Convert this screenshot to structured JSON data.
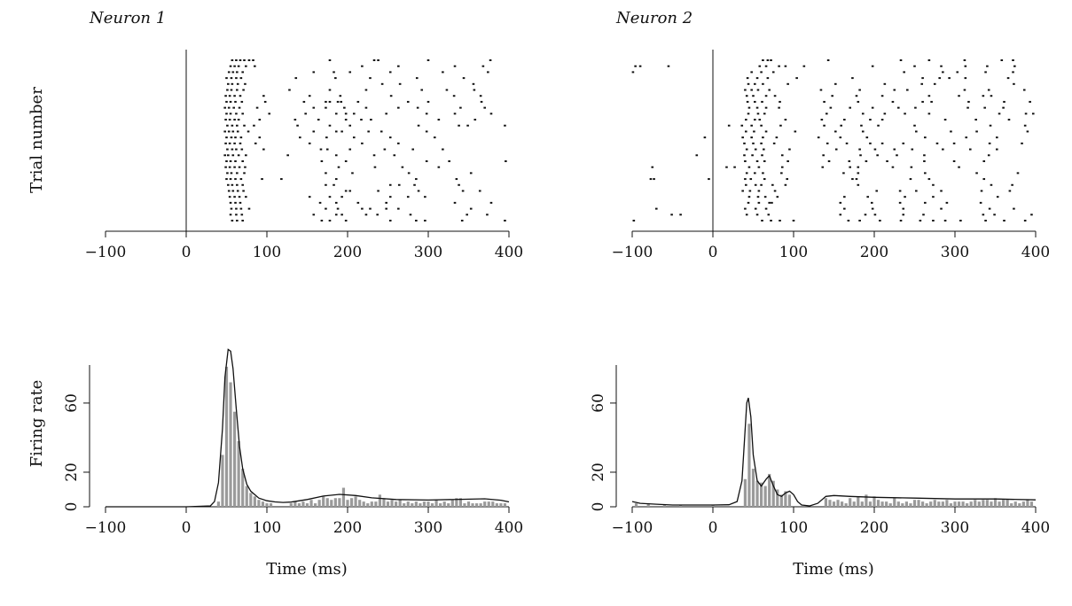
{
  "chart_data": [
    {
      "type": "raster",
      "panel": "neuron1-raster",
      "title": "Neuron 1",
      "xlabel": "",
      "ylabel": "Trial number",
      "xlim": [
        -100,
        400
      ],
      "xticks": [
        "−100",
        "0",
        "100",
        "200",
        "300",
        "400"
      ],
      "xtick_values": [
        -100,
        0,
        100,
        200,
        300,
        400
      ],
      "trials": 28,
      "spike_times": [
        [
          57,
          62,
          67,
          72,
          78,
          83,
          178,
          233,
          238,
          300,
          377
        ],
        [
          55,
          60,
          65,
          74,
          85,
          218,
          263,
          333,
          368
        ],
        [
          53,
          58,
          63,
          70,
          158,
          183,
          203,
          253,
          318,
          374
        ],
        [
          50,
          56,
          62,
          68,
          136,
          185,
          228,
          286,
          344
        ],
        [
          52,
          57,
          64,
          73,
          243,
          265,
          356
        ],
        [
          51,
          56,
          63,
          71,
          128,
          178,
          223,
          292,
          323,
          357
        ],
        [
          49,
          54,
          60,
          67,
          96,
          153,
          191,
          254,
          332,
          365
        ],
        [
          50,
          55,
          61,
          69,
          98,
          146,
          173,
          178,
          188,
          192,
          213,
          275,
          300,
          366
        ],
        [
          48,
          53,
          59,
          66,
          88,
          158,
          173,
          196,
          223,
          263,
          287,
          340,
          370
        ],
        [
          50,
          55,
          62,
          70,
          103,
          148,
          186,
          198,
          208,
          248,
          298,
          333,
          378
        ],
        [
          49,
          54,
          60,
          65,
          91,
          135,
          164,
          198,
          217,
          229,
          313,
          358
        ],
        [
          51,
          57,
          63,
          72,
          84,
          138,
          178,
          203,
          288,
          338,
          349,
          395
        ],
        [
          48,
          53,
          58,
          64,
          77,
          158,
          186,
          193,
          226,
          242,
          298
        ],
        [
          50,
          56,
          61,
          68,
          91,
          141,
          174,
          208,
          253,
          308
        ],
        [
          49,
          54,
          60,
          67,
          86,
          153,
          218,
          263
        ],
        [
          51,
          57,
          62,
          69,
          96,
          167,
          175,
          203,
          246,
          281,
          318
        ],
        [
          48,
          52,
          58,
          65,
          74,
          126,
          186,
          233,
          258
        ],
        [
          50,
          55,
          61,
          70,
          168,
          198,
          298,
          326,
          396
        ],
        [
          49,
          54,
          60,
          66,
          73,
          189,
          234,
          268,
          313
        ],
        [
          51,
          56,
          63,
          72,
          173,
          206,
          276,
          353
        ],
        [
          50,
          55,
          61,
          68,
          94,
          118,
          186,
          285,
          335
        ],
        [
          52,
          57,
          63,
          70,
          173,
          183,
          253,
          264,
          283,
          338
        ],
        [
          53,
          58,
          64,
          71,
          198,
          203,
          238,
          288,
          343,
          364
        ],
        [
          54,
          60,
          66,
          74,
          153,
          178,
          193,
          253,
          275,
          296
        ],
        [
          55,
          61,
          67,
          166,
          186,
          213,
          248,
          333,
          378
        ],
        [
          56,
          62,
          68,
          78,
          173,
          188,
          218,
          228,
          248,
          263,
          353
        ],
        [
          55,
          62,
          69,
          158,
          186,
          193,
          223,
          237,
          278,
          348,
          373
        ],
        [
          57,
          63,
          70,
          168,
          178,
          198,
          253,
          285,
          296,
          342,
          395
        ]
      ]
    },
    {
      "type": "raster",
      "panel": "neuron2-raster",
      "title": "Neuron 2",
      "xlabel": "",
      "ylabel": "",
      "xlim": [
        -100,
        400
      ],
      "xticks": [
        "−100",
        "0",
        "100",
        "200",
        "300",
        "400"
      ],
      "xtick_values": [
        -100,
        0,
        100,
        200,
        300,
        400
      ],
      "trials": 28,
      "spike_times": [
        [
          62,
          68,
          72,
          143,
          233,
          268,
          312,
          358,
          372
        ],
        [
          -96,
          -90,
          -55,
          58,
          66,
          82,
          90,
          113,
          198,
          250,
          283,
          313,
          340,
          374
        ],
        [
          -99,
          48,
          60,
          75,
          237,
          285,
          303,
          338,
          372
        ],
        [
          43,
          55,
          68,
          104,
          173,
          260,
          281,
          293,
          313,
          366
        ],
        [
          44,
          52,
          62,
          93,
          152,
          213,
          259,
          275,
          373
        ],
        [
          40,
          48,
          56,
          70,
          134,
          182,
          225,
          241,
          312,
          342,
          386
        ],
        [
          42,
          50,
          66,
          77,
          148,
          178,
          210,
          268,
          305,
          335,
          345
        ],
        [
          43,
          52,
          61,
          83,
          138,
          180,
          223,
          260,
          271,
          317,
          361,
          393
        ],
        [
          45,
          55,
          66,
          82,
          146,
          170,
          198,
          230,
          251,
          316,
          337,
          360
        ],
        [
          44,
          56,
          64,
          141,
          186,
          213,
          238,
          268,
          355,
          388,
          397
        ],
        [
          41,
          52,
          58,
          90,
          135,
          163,
          195,
          210,
          288,
          326,
          367
        ],
        [
          20,
          36,
          48,
          60,
          84,
          138,
          159,
          184,
          205,
          250,
          344,
          387
        ],
        [
          41,
          51,
          66,
          102,
          152,
          186,
          252,
          295,
          327,
          390
        ],
        [
          -10,
          37,
          48,
          62,
          79,
          131,
          158,
          191,
          263,
          314,
          352
        ],
        [
          39,
          50,
          60,
          76,
          142,
          166,
          195,
          210,
          236,
          278,
          299,
          343,
          383
        ],
        [
          42,
          53,
          63,
          95,
          153,
          182,
          201,
          225,
          247,
          285,
          319,
          352
        ],
        [
          -20,
          39,
          49,
          61,
          86,
          137,
          183,
          204,
          228,
          262,
          342
        ],
        [
          40,
          55,
          64,
          93,
          144,
          169,
          190,
          216,
          262,
          299,
          336
        ],
        [
          -75,
          17,
          27,
          45,
          57,
          86,
          136,
          170,
          180,
          223,
          246,
          305
        ],
        [
          42,
          52,
          62,
          85,
          162,
          180,
          263,
          327,
          378
        ],
        [
          -77,
          -73,
          -5,
          40,
          47,
          64,
          92,
          173,
          178,
          245,
          268,
          336
        ],
        [
          41,
          53,
          60,
          74,
          90,
          180,
          273,
          345,
          371
        ],
        [
          37,
          46,
          57,
          77,
          203,
          232,
          252,
          283,
          333,
          368
        ],
        [
          45,
          56,
          65,
          80,
          163,
          192,
          238,
          273,
          353
        ],
        [
          44,
          57,
          70,
          73,
          158,
          197,
          232,
          263,
          290,
          332
        ],
        [
          -70,
          40,
          53,
          66,
          163,
          198,
          236,
          283,
          343,
          373
        ],
        [
          -51,
          -40,
          42,
          55,
          69,
          158,
          189,
          201,
          236,
          261,
          335,
          349,
          395
        ],
        [
          -98,
          61,
          72,
          83,
          100,
          168,
          182,
          207,
          233,
          257,
          273,
          288,
          307,
          338,
          361,
          387
        ]
      ]
    },
    {
      "type": "bar",
      "panel": "neuron1-rate",
      "title": "",
      "xlabel": "Time (ms)",
      "ylabel": "Firing rate",
      "xlim": [
        -100,
        400
      ],
      "ylim": [
        0,
        82
      ],
      "xticks": [
        "−100",
        "0",
        "100",
        "200",
        "300",
        "400"
      ],
      "xtick_values": [
        -100,
        0,
        100,
        200,
        300,
        400
      ],
      "yticks": [
        "0",
        "20",
        "60"
      ],
      "ytick_values": [
        0,
        20,
        60
      ],
      "bins_x": [
        40,
        45,
        50,
        55,
        60,
        65,
        70,
        75,
        80,
        85,
        90,
        95,
        100,
        105,
        130,
        135,
        140,
        145,
        150,
        155,
        160,
        165,
        170,
        175,
        180,
        185,
        190,
        195,
        200,
        205,
        210,
        215,
        220,
        225,
        230,
        235,
        240,
        245,
        250,
        255,
        260,
        265,
        270,
        275,
        280,
        285,
        290,
        295,
        300,
        305,
        310,
        315,
        320,
        325,
        330,
        335,
        340,
        345,
        350,
        355,
        360,
        365,
        370,
        375,
        380,
        385,
        390,
        395
      ],
      "bins_y": [
        3,
        30,
        81,
        72,
        55,
        38,
        22,
        12,
        8,
        6,
        4,
        3,
        2,
        2,
        2,
        3,
        2,
        3,
        2,
        4,
        2,
        4,
        6,
        5,
        4,
        5,
        5,
        11,
        4,
        5,
        6,
        4,
        3,
        2,
        3,
        3,
        7,
        5,
        3,
        4,
        3,
        4,
        2,
        3,
        2,
        3,
        2,
        3,
        3,
        2,
        4,
        2,
        3,
        2,
        4,
        5,
        5,
        2,
        3,
        2,
        2,
        2,
        3,
        3,
        3,
        2,
        2,
        2
      ],
      "series": [
        {
          "type": "line",
          "x": [
            -100,
            0,
            30,
            35,
            40,
            45,
            48,
            52,
            55,
            58,
            62,
            66,
            70,
            75,
            80,
            90,
            100,
            110,
            120,
            130,
            150,
            170,
            190,
            210,
            230,
            260,
            300,
            340,
            370,
            390,
            400
          ],
          "y": [
            0,
            0,
            0.5,
            3,
            14,
            45,
            75,
            91,
            90,
            80,
            57,
            35,
            22,
            13,
            9,
            5,
            3.5,
            2.8,
            2.5,
            2.7,
            4.2,
            6.2,
            7.2,
            6.5,
            5.2,
            4.2,
            3.9,
            4.3,
            4.6,
            3.8,
            2.8
          ]
        }
      ]
    },
    {
      "type": "bar",
      "panel": "neuron2-rate",
      "title": "",
      "xlabel": "Time (ms)",
      "ylabel": "",
      "xlim": [
        -100,
        400
      ],
      "ylim": [
        0,
        82
      ],
      "xticks": [
        "−100",
        "0",
        "100",
        "200",
        "300",
        "400"
      ],
      "xtick_values": [
        -100,
        0,
        100,
        200,
        300,
        400
      ],
      "yticks": [
        "0",
        "20",
        "60"
      ],
      "ytick_values": [
        0,
        20,
        60
      ],
      "bins_x": [
        -95,
        -80,
        -60,
        -40,
        0,
        40,
        45,
        50,
        55,
        60,
        65,
        70,
        75,
        80,
        85,
        90,
        95,
        140,
        145,
        150,
        155,
        160,
        165,
        170,
        175,
        180,
        185,
        190,
        195,
        200,
        205,
        210,
        215,
        220,
        225,
        230,
        235,
        240,
        245,
        250,
        255,
        260,
        265,
        270,
        275,
        280,
        285,
        290,
        295,
        300,
        305,
        310,
        315,
        320,
        325,
        330,
        335,
        340,
        345,
        350,
        355,
        360,
        365,
        370,
        375,
        380,
        385,
        390,
        395
      ],
      "bins_y": [
        2,
        2,
        1,
        1,
        1,
        16,
        48,
        22,
        15,
        14,
        12,
        19,
        15,
        10,
        7,
        9,
        7,
        5,
        4,
        3,
        4,
        3,
        2,
        5,
        3,
        6,
        3,
        7,
        3,
        6,
        4,
        3,
        3,
        2,
        5,
        3,
        2,
        3,
        2,
        4,
        4,
        3,
        2,
        3,
        4,
        3,
        3,
        4,
        2,
        3,
        3,
        3,
        2,
        3,
        4,
        3,
        4,
        4,
        3,
        5,
        3,
        4,
        4,
        2,
        3,
        2,
        3,
        4,
        3
      ],
      "series": [
        {
          "type": "line",
          "x": [
            -100,
            -90,
            -70,
            -50,
            -30,
            -10,
            0,
            20,
            30,
            36,
            40,
            42,
            44,
            47,
            50,
            55,
            60,
            66,
            70,
            75,
            80,
            85,
            90,
            95,
            100,
            105,
            110,
            120,
            130,
            140,
            150,
            170,
            200,
            250,
            300,
            350,
            400
          ],
          "y": [
            3,
            2,
            1.5,
            1,
            1,
            1,
            1,
            1.2,
            3,
            15,
            45,
            60,
            63,
            52,
            30,
            15,
            12,
            16,
            18,
            12,
            7,
            6,
            8,
            9,
            7,
            3,
            1,
            0.5,
            2,
            6,
            6.5,
            6,
            5.5,
            5,
            4.5,
            4.5,
            4
          ]
        }
      ]
    }
  ]
}
